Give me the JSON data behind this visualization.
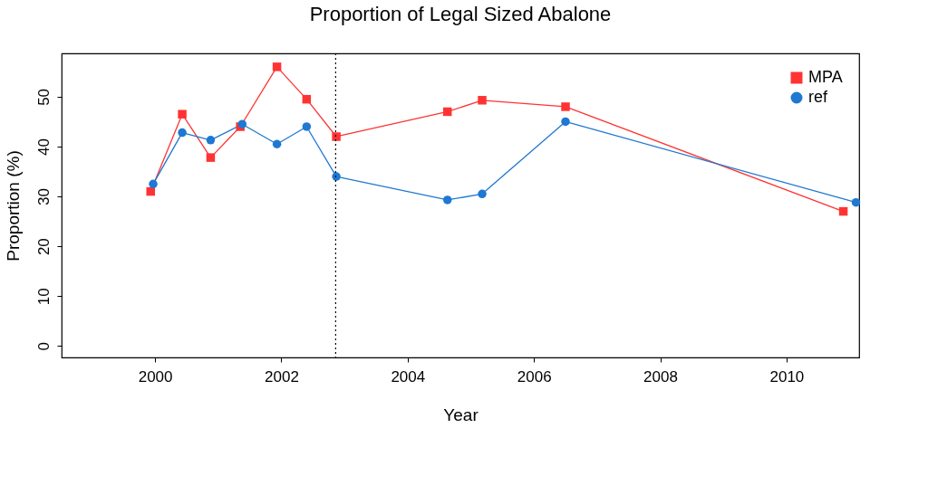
{
  "chart_data": {
    "type": "line",
    "title": "Proportion of Legal Sized Abalone",
    "xlabel": "Year",
    "ylabel": "Proportion (%)",
    "series": [
      {
        "name": "MPA",
        "color": "#ff3333",
        "marker": "square",
        "x": [
          1999.93,
          2000.43,
          2000.88,
          2001.35,
          2001.93,
          2002.4,
          2002.87,
          2004.63,
          2005.18,
          2006.5,
          2010.9
        ],
        "values": [
          31,
          46.5,
          37.8,
          44,
          56,
          49.5,
          42,
          47,
          49.3,
          48,
          27
        ]
      },
      {
        "name": "ref",
        "color": "#1f78d1",
        "marker": "circle",
        "x": [
          1999.97,
          2000.43,
          2000.88,
          2001.38,
          2001.93,
          2002.4,
          2002.87,
          2004.63,
          2005.18,
          2006.5,
          2011.1
        ],
        "values": [
          32.5,
          42.8,
          41.3,
          44.5,
          40.5,
          44,
          34,
          29.3,
          30.5,
          45,
          28.8
        ]
      }
    ],
    "xlim": [
      1998.52,
      2011.15
    ],
    "xticks": [
      2000,
      2002,
      2004,
      2006,
      2008,
      2010
    ],
    "ylim": [
      -2.3,
      58.7
    ],
    "yticks": [
      0,
      10,
      20,
      30,
      40,
      50
    ],
    "ref_lines": [
      {
        "axis": "x",
        "value": 2002.86,
        "color": "#000000",
        "line_style": "dotted"
      }
    ],
    "grid": false,
    "legend": "top right",
    "line_style": "solid"
  }
}
